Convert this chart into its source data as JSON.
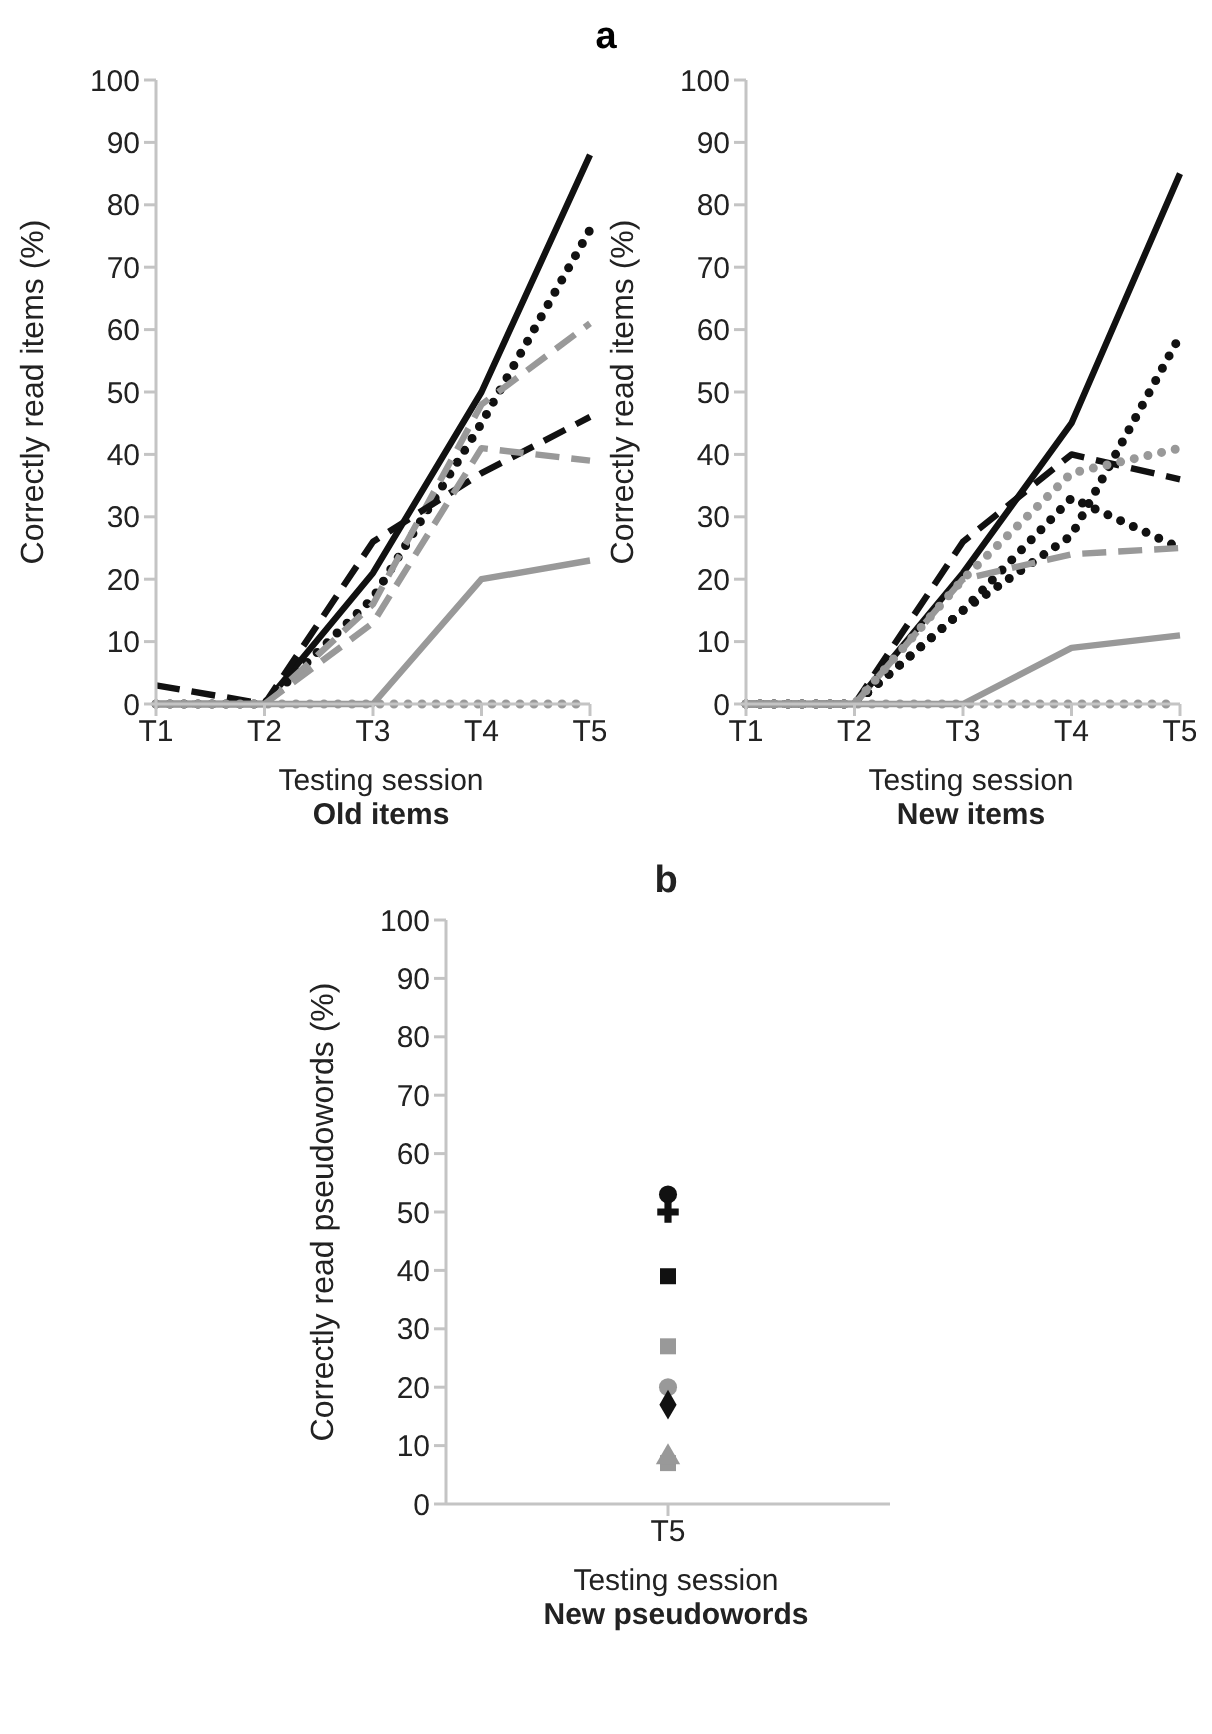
{
  "chart_data": [
    {
      "type": "line",
      "annotations": [
        "a"
      ],
      "subtitle": "Old items",
      "xlabel": "Testing session",
      "ylabel": "Correctly read items (%)",
      "categories": [
        "T1",
        "T2",
        "T3",
        "T4",
        "T5"
      ],
      "ylim": [
        0,
        100
      ],
      "yticks": [
        0,
        10,
        20,
        30,
        40,
        50,
        60,
        70,
        80,
        90,
        100
      ],
      "series": [
        {
          "color": "#111111",
          "line_style": "solid",
          "values": [
            0,
            0,
            21,
            50,
            88
          ]
        },
        {
          "color": "#111111",
          "line_style": "dotted",
          "values": [
            0,
            0,
            17,
            45,
            76
          ]
        },
        {
          "color": "#999999",
          "line_style": "dashed",
          "values": [
            0,
            0,
            16,
            48,
            61
          ]
        },
        {
          "color": "#111111",
          "line_style": "dashed",
          "values": [
            3,
            0,
            26,
            37,
            46
          ]
        },
        {
          "color": "#999999",
          "line_style": "dashed",
          "values": [
            0,
            0,
            13,
            41,
            39
          ]
        },
        {
          "color": "#999999",
          "line_style": "solid",
          "values": [
            0,
            0,
            0,
            20,
            23
          ]
        },
        {
          "color": "#999999",
          "line_style": "dotted",
          "values": [
            0,
            0,
            0,
            0,
            0
          ]
        }
      ]
    },
    {
      "type": "line",
      "subtitle": "New items",
      "xlabel": "Testing session",
      "ylabel": "Correctly read items (%)",
      "categories": [
        "T1",
        "T2",
        "T3",
        "T4",
        "T5"
      ],
      "ylim": [
        0,
        100
      ],
      "yticks": [
        0,
        10,
        20,
        30,
        40,
        50,
        60,
        70,
        80,
        90,
        100
      ],
      "series": [
        {
          "color": "#111111",
          "line_style": "solid",
          "values": [
            0,
            0,
            21,
            45,
            85
          ]
        },
        {
          "color": "#111111",
          "line_style": "dotted",
          "values": [
            0,
            0,
            15,
            27,
            59
          ]
        },
        {
          "color": "#111111",
          "line_style": "dashed",
          "values": [
            0,
            0,
            26,
            40,
            36
          ]
        },
        {
          "color": "#111111",
          "line_style": "dotted",
          "values": [
            0,
            0,
            15,
            33,
            25
          ]
        },
        {
          "color": "#999999",
          "line_style": "dotted",
          "values": [
            0,
            0,
            20,
            37,
            41
          ]
        },
        {
          "color": "#999999",
          "line_style": "dashed",
          "values": [
            0,
            0,
            20,
            24,
            25
          ]
        },
        {
          "color": "#999999",
          "line_style": "solid",
          "values": [
            0,
            0,
            0,
            9,
            11
          ]
        },
        {
          "color": "#999999",
          "line_style": "dotted",
          "values": [
            0,
            0,
            0,
            0,
            0
          ]
        }
      ]
    },
    {
      "type": "scatter",
      "title": "b",
      "subtitle": "New pseudowords",
      "xlabel": "Testing session",
      "ylabel": "Correctly read pseudowords (%)",
      "categories": [
        "T5"
      ],
      "ylim": [
        0,
        100
      ],
      "yticks": [
        0,
        10,
        20,
        30,
        40,
        50,
        60,
        70,
        80,
        90,
        100
      ],
      "series": [
        {
          "color": "#111111",
          "marker": "circle",
          "values": [
            53
          ]
        },
        {
          "color": "#111111",
          "marker": "cross",
          "values": [
            50
          ]
        },
        {
          "color": "#111111",
          "marker": "square",
          "values": [
            39
          ]
        },
        {
          "color": "#999999",
          "marker": "square",
          "values": [
            27
          ]
        },
        {
          "color": "#999999",
          "marker": "circle",
          "values": [
            20
          ]
        },
        {
          "color": "#111111",
          "marker": "diamond",
          "values": [
            17
          ]
        },
        {
          "color": "#999999",
          "marker": "square",
          "values": [
            7
          ]
        },
        {
          "color": "#999999",
          "marker": "triangle",
          "values": [
            8
          ]
        }
      ]
    }
  ]
}
